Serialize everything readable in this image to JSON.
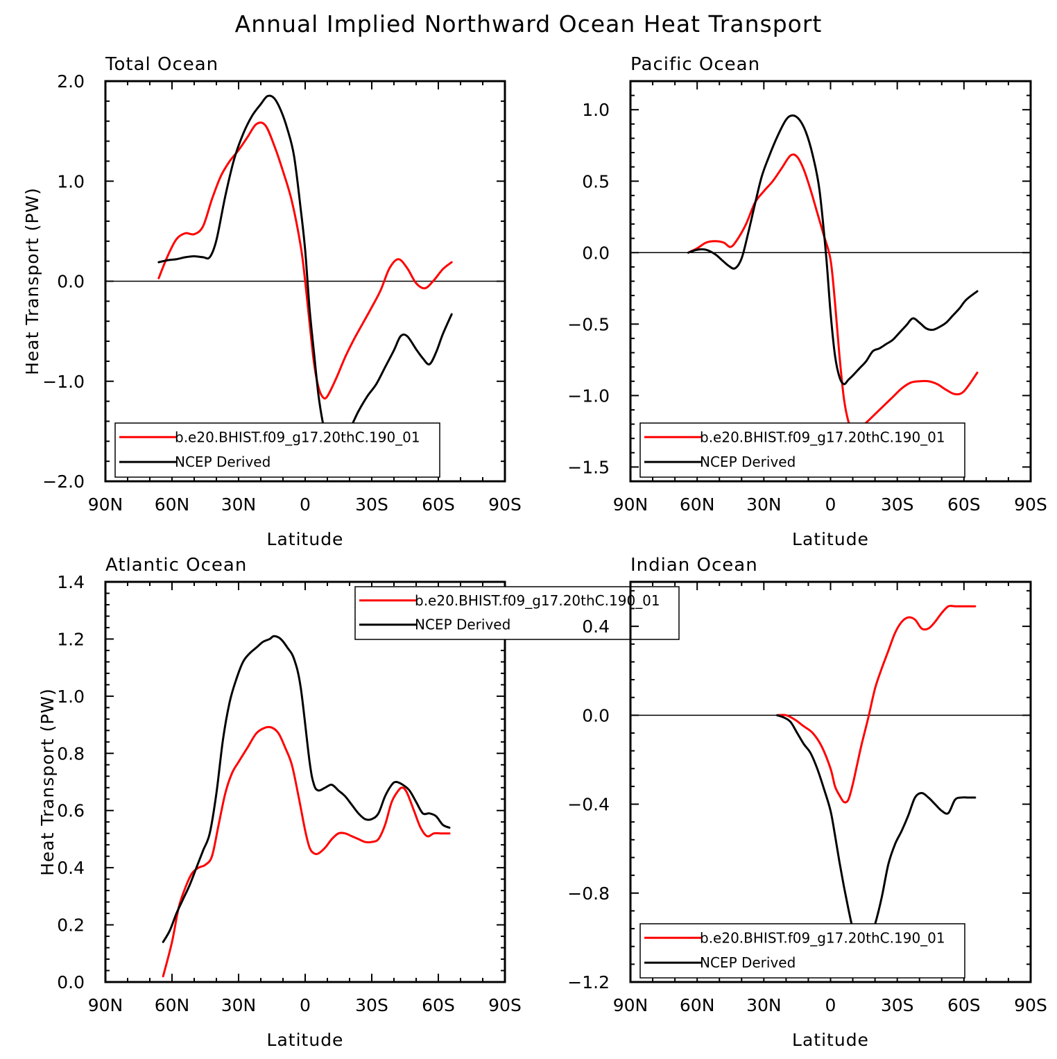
{
  "title": "Annual Implied Northward Ocean Heat Transport",
  "colors": {
    "model": "#ff0000",
    "ncep": "#000000",
    "zero_line": "#000000"
  },
  "chart_data": [
    {
      "type": "line",
      "title": "Total Ocean",
      "xlabel": "Latitude",
      "ylabel": "Heat Transport (PW)",
      "xlim": [
        90,
        -90
      ],
      "ylim": [
        -2.0,
        2.0
      ],
      "xticks": [
        90,
        60,
        30,
        0,
        -30,
        -60,
        -90
      ],
      "xticklabels": [
        "90N",
        "60N",
        "30N",
        "0",
        "30S",
        "60S",
        "90S"
      ],
      "yticks": [
        -2.0,
        -1.0,
        0.0,
        1.0,
        2.0
      ],
      "yticklabels": [
        "−2.0",
        "−1.0",
        "0.0",
        "1.0",
        "2.0"
      ],
      "zero_line": true,
      "legend_location": "lower-center",
      "series": [
        {
          "name": "b.e20.BHIST.f09_g17.20thC.190_01",
          "color": "#ff0000",
          "x": [
            66,
            62,
            58,
            54,
            50,
            46,
            42,
            38,
            34,
            30,
            26,
            22,
            18,
            14,
            10,
            6,
            2,
            0,
            -2,
            -4,
            -6,
            -8,
            -10,
            -14,
            -18,
            -22,
            -26,
            -30,
            -34,
            -38,
            -42,
            -46,
            -50,
            -54,
            -58,
            -62,
            -66
          ],
          "y": [
            0.03,
            0.25,
            0.42,
            0.48,
            0.47,
            0.55,
            0.82,
            1.05,
            1.2,
            1.31,
            1.44,
            1.57,
            1.56,
            1.36,
            1.1,
            0.8,
            0.35,
            0.0,
            -0.42,
            -0.82,
            -1.06,
            -1.16,
            -1.15,
            -0.97,
            -0.76,
            -0.58,
            -0.42,
            -0.26,
            -0.09,
            0.13,
            0.22,
            0.13,
            -0.02,
            -0.07,
            0.01,
            0.12,
            0.19
          ]
        },
        {
          "name": "NCEP Derived",
          "color": "#000000",
          "x": [
            66,
            62,
            58,
            54,
            50,
            46,
            43,
            40,
            36,
            32,
            28,
            24,
            20,
            17,
            14,
            11,
            8,
            5,
            2,
            0,
            -2,
            -4,
            -6,
            -8,
            -10,
            -12,
            -16,
            -20,
            -24,
            -28,
            -32,
            -36,
            -40,
            -43,
            -46,
            -50,
            -53,
            -56,
            -59,
            -62,
            -66
          ],
          "y": [
            0.19,
            0.21,
            0.22,
            0.24,
            0.25,
            0.24,
            0.24,
            0.41,
            0.85,
            1.22,
            1.47,
            1.65,
            1.77,
            1.85,
            1.83,
            1.71,
            1.52,
            1.25,
            0.72,
            0.31,
            -0.28,
            -0.72,
            -1.14,
            -1.42,
            -1.61,
            -1.64,
            -1.6,
            -1.48,
            -1.3,
            -1.15,
            -1.03,
            -0.86,
            -0.69,
            -0.55,
            -0.55,
            -0.68,
            -0.77,
            -0.83,
            -0.71,
            -0.53,
            -0.33
          ]
        }
      ]
    },
    {
      "type": "line",
      "title": "Pacific Ocean",
      "xlabel": "Latitude",
      "ylabel": "",
      "xlim": [
        90,
        -90
      ],
      "ylim": [
        -1.6,
        1.2
      ],
      "xticks": [
        90,
        60,
        30,
        0,
        -30,
        -60,
        -90
      ],
      "xticklabels": [
        "90N",
        "60N",
        "30N",
        "0",
        "30S",
        "60S",
        "90S"
      ],
      "yticks": [
        -1.5,
        -1.0,
        -0.5,
        0.0,
        0.5,
        1.0
      ],
      "yticklabels": [
        "−1.5",
        "−1.0",
        "−0.5",
        "0.0",
        "0.5",
        "1.0"
      ],
      "zero_line": true,
      "legend_location": "lower-center",
      "series": [
        {
          "name": "b.e20.BHIST.f09_g17.20thC.190_01",
          "color": "#ff0000",
          "x": [
            64,
            60,
            56,
            52,
            48,
            45,
            42,
            38,
            34,
            30,
            26,
            22,
            18,
            15,
            12,
            9,
            6,
            3,
            0,
            -2,
            -4,
            -6,
            -8,
            -10,
            -12,
            -16,
            -20,
            -24,
            -28,
            -32,
            -36,
            -40,
            -44,
            -48,
            -52,
            -56,
            -60,
            -66
          ],
          "y": [
            0.0,
            0.03,
            0.07,
            0.08,
            0.07,
            0.04,
            0.09,
            0.2,
            0.35,
            0.43,
            0.5,
            0.59,
            0.68,
            0.67,
            0.58,
            0.44,
            0.28,
            0.12,
            -0.05,
            -0.35,
            -0.72,
            -1.02,
            -1.18,
            -1.25,
            -1.24,
            -1.19,
            -1.13,
            -1.07,
            -1.01,
            -0.95,
            -0.91,
            -0.9,
            -0.9,
            -0.92,
            -0.96,
            -0.99,
            -0.97,
            -0.84
          ]
        },
        {
          "name": "NCEP Derived",
          "color": "#000000",
          "x": [
            64,
            60,
            56,
            52,
            49,
            46,
            43,
            40,
            37,
            34,
            31,
            28,
            24,
            20,
            17,
            14,
            11,
            8,
            5,
            2,
            0,
            -2,
            -4,
            -6,
            -8,
            -10,
            -13,
            -16,
            -19,
            -22,
            -25,
            -28,
            -31,
            -34,
            -37,
            -40,
            -43,
            -46,
            -49,
            -52,
            -55,
            -58,
            -61,
            -66
          ],
          "y": [
            0.0,
            0.02,
            0.02,
            -0.01,
            -0.05,
            -0.09,
            -0.11,
            -0.04,
            0.14,
            0.34,
            0.53,
            0.66,
            0.81,
            0.93,
            0.96,
            0.93,
            0.84,
            0.68,
            0.44,
            -0.02,
            -0.42,
            -0.72,
            -0.87,
            -0.92,
            -0.89,
            -0.86,
            -0.81,
            -0.76,
            -0.69,
            -0.67,
            -0.64,
            -0.61,
            -0.56,
            -0.51,
            -0.46,
            -0.49,
            -0.53,
            -0.54,
            -0.52,
            -0.49,
            -0.44,
            -0.39,
            -0.33,
            -0.27
          ]
        }
      ]
    },
    {
      "type": "line",
      "title": "Atlantic Ocean",
      "xlabel": "Latitude",
      "ylabel": "Heat Transport (PW)",
      "xlim": [
        90,
        -90
      ],
      "ylim": [
        0.0,
        1.4
      ],
      "xticks": [
        90,
        60,
        30,
        0,
        -30,
        -60,
        -90
      ],
      "xticklabels": [
        "90N",
        "60N",
        "30N",
        "0",
        "30S",
        "60S",
        "90S"
      ],
      "yticks": [
        0.0,
        0.2,
        0.4,
        0.6,
        0.8,
        1.0,
        1.2,
        1.4
      ],
      "yticklabels": [
        "0.0",
        "0.2",
        "0.4",
        "0.6",
        "0.8",
        "1.0",
        "1.2",
        "1.4"
      ],
      "zero_line": false,
      "legend_location": "upper-center",
      "series": [
        {
          "name": "b.e20.BHIST.f09_g17.20thC.190_01",
          "color": "#ff0000",
          "x": [
            64,
            60,
            57,
            54,
            51,
            48,
            45,
            42,
            39,
            36,
            33,
            30,
            26,
            22,
            18,
            15,
            12,
            9,
            6,
            3,
            0,
            -2,
            -4,
            -6,
            -9,
            -12,
            -15,
            -18,
            -21,
            -24,
            -27,
            -30,
            -33,
            -36,
            -39,
            -42,
            -44,
            -46,
            -49,
            -52,
            -55,
            -58,
            -61,
            -65
          ],
          "y": [
            0.02,
            0.14,
            0.26,
            0.33,
            0.38,
            0.4,
            0.41,
            0.44,
            0.55,
            0.66,
            0.73,
            0.77,
            0.82,
            0.87,
            0.89,
            0.89,
            0.87,
            0.82,
            0.76,
            0.65,
            0.53,
            0.47,
            0.45,
            0.45,
            0.47,
            0.5,
            0.52,
            0.52,
            0.51,
            0.5,
            0.49,
            0.49,
            0.5,
            0.55,
            0.63,
            0.67,
            0.68,
            0.66,
            0.6,
            0.54,
            0.51,
            0.52,
            0.52,
            0.52
          ]
        },
        {
          "name": "NCEP Derived",
          "color": "#000000",
          "x": [
            64,
            61,
            58,
            55,
            52,
            49,
            46,
            43,
            40,
            37,
            34,
            31,
            28,
            25,
            22,
            19,
            16,
            14,
            11,
            8,
            5,
            2,
            -2,
            -4,
            -6,
            -9,
            -12,
            -15,
            -18,
            -21,
            -24,
            -27,
            -30,
            -33,
            -36,
            -39,
            -41,
            -44,
            -47,
            -50,
            -53,
            -56,
            -59,
            -62,
            -65
          ],
          "y": [
            0.14,
            0.18,
            0.24,
            0.29,
            0.34,
            0.4,
            0.46,
            0.52,
            0.66,
            0.85,
            0.98,
            1.06,
            1.12,
            1.15,
            1.17,
            1.19,
            1.2,
            1.21,
            1.2,
            1.17,
            1.13,
            1.03,
            0.77,
            0.69,
            0.67,
            0.68,
            0.69,
            0.67,
            0.65,
            0.62,
            0.59,
            0.57,
            0.57,
            0.59,
            0.65,
            0.69,
            0.7,
            0.69,
            0.67,
            0.63,
            0.59,
            0.59,
            0.58,
            0.55,
            0.54
          ]
        }
      ]
    },
    {
      "type": "line",
      "title": "Indian Ocean",
      "xlabel": "Latitude",
      "ylabel": "",
      "xlim": [
        90,
        -90
      ],
      "ylim": [
        -1.2,
        0.6
      ],
      "xticks": [
        90,
        60,
        30,
        0,
        -30,
        -60,
        -90
      ],
      "xticklabels": [
        "90N",
        "60N",
        "30N",
        "0",
        "30S",
        "60S",
        "90S"
      ],
      "yticks": [
        -1.2,
        -0.8,
        -0.4,
        0.0,
        0.4
      ],
      "yticklabels": [
        "−1.2",
        "−0.8",
        "−0.4",
        "0.0",
        "0.4"
      ],
      "zero_line": true,
      "legend_location": "lower-center",
      "series": [
        {
          "name": "b.e20.BHIST.f09_g17.20thC.190_01",
          "color": "#ff0000",
          "x": [
            24,
            20,
            16,
            12,
            8,
            4,
            0,
            -2,
            -4,
            -6,
            -8,
            -10,
            -12,
            -14,
            -17,
            -20,
            -23,
            -26,
            -29,
            -32,
            -35,
            -38,
            -41,
            -44,
            -47,
            -50,
            -53,
            -56,
            -59,
            -62,
            -65
          ],
          "y": [
            0.0,
            0.0,
            -0.02,
            -0.05,
            -0.08,
            -0.14,
            -0.24,
            -0.32,
            -0.36,
            -0.39,
            -0.38,
            -0.31,
            -0.22,
            -0.13,
            -0.01,
            0.12,
            0.21,
            0.29,
            0.37,
            0.42,
            0.44,
            0.43,
            0.39,
            0.39,
            0.42,
            0.46,
            0.49,
            0.49,
            0.49,
            0.49,
            0.49
          ]
        },
        {
          "name": "NCEP Derived",
          "color": "#000000",
          "x": [
            24,
            21,
            18,
            15,
            12,
            9,
            6,
            3,
            0,
            -2,
            -4,
            -6,
            -8,
            -10,
            -12,
            -14,
            -17,
            -20,
            -23,
            -26,
            -29,
            -32,
            -35,
            -38,
            -41,
            -44,
            -47,
            -50,
            -53,
            -56,
            -59,
            -62,
            -65
          ],
          "y": [
            0.0,
            -0.01,
            -0.03,
            -0.08,
            -0.13,
            -0.17,
            -0.24,
            -0.33,
            -0.43,
            -0.54,
            -0.66,
            -0.77,
            -0.87,
            -0.96,
            -1.01,
            -1.05,
            -1.02,
            -0.94,
            -0.82,
            -0.67,
            -0.58,
            -0.52,
            -0.45,
            -0.37,
            -0.35,
            -0.37,
            -0.4,
            -0.43,
            -0.44,
            -0.38,
            -0.37,
            -0.37,
            -0.37
          ]
        }
      ]
    }
  ]
}
